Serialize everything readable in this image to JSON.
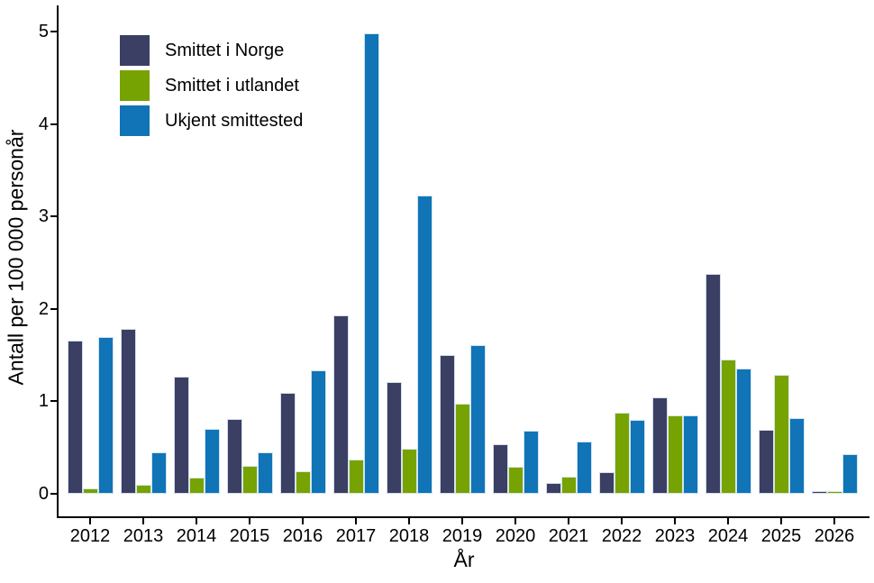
{
  "chart_data": {
    "type": "bar",
    "title": "",
    "xlabel": "År",
    "ylabel": "Antall per 100 000 personår",
    "categories": [
      "2012",
      "2013",
      "2014",
      "2015",
      "2016",
      "2017",
      "2018",
      "2019",
      "2020",
      "2021",
      "2022",
      "2023",
      "2024",
      "2025",
      "2026"
    ],
    "series": [
      {
        "name": "Smittet i Norge",
        "color": "#3b3f63",
        "values": [
          1.66,
          1.78,
          1.27,
          0.81,
          1.09,
          1.93,
          1.21,
          1.5,
          0.54,
          0.12,
          0.23,
          1.04,
          2.38,
          0.69,
          0.03
        ]
      },
      {
        "name": "Smittet i utlandet",
        "color": "#76a302",
        "values": [
          0.06,
          0.1,
          0.18,
          0.3,
          0.24,
          0.37,
          0.49,
          0.97,
          0.29,
          0.19,
          0.88,
          0.85,
          1.45,
          1.29,
          0.03
        ]
      },
      {
        "name": "Ukjent smittested",
        "color": "#1074b6",
        "values": [
          1.7,
          0.45,
          0.7,
          0.45,
          1.34,
          4.98,
          3.23,
          1.61,
          0.68,
          0.57,
          0.8,
          0.85,
          1.35,
          0.82,
          0.43
        ]
      }
    ],
    "ylim": [
      0,
      5
    ],
    "yticks": [
      0,
      1,
      2,
      3,
      4,
      5
    ],
    "grid": false,
    "legend_position": "top-left",
    "axis_color": "#000000",
    "background_color": "#ffffff"
  }
}
